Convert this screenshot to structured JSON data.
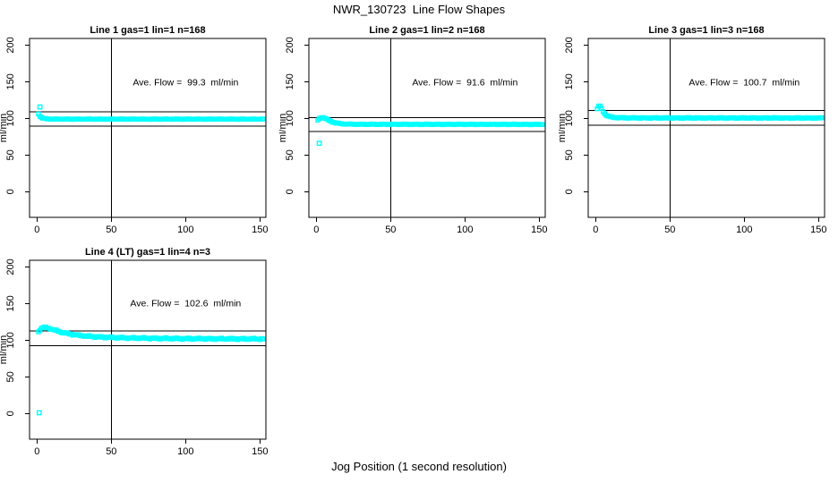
{
  "figure": {
    "title": "NWR_130723  Line Flow Shapes",
    "xlabel": "Jog Position (1 second resolution)",
    "colors": {
      "background": "#ffffff",
      "foreground": "#000000",
      "marker": "#00ffff"
    }
  },
  "chart_data": [
    {
      "type": "scatter",
      "title": "Line 1 gas=1 lin=1 n=168",
      "ylabel": "ml/min",
      "annotation": "Ave. Flow =  99.3  ml/min",
      "ave_flow_ml_min": 99.3,
      "n": 168,
      "grid_pos": [
        0,
        0
      ],
      "xlim": [
        -5,
        154
      ],
      "ylim": [
        -35,
        209
      ],
      "xticks": [
        0,
        50,
        100,
        150
      ],
      "yticks": [
        0,
        50,
        100,
        150,
        200
      ],
      "vline_x": 50,
      "hlines": [
        109.2,
        89.4
      ],
      "annotation_pos": [
        100,
        150
      ],
      "noise": 0.4,
      "curve": [
        [
          1,
          106
        ],
        [
          2,
          103
        ],
        [
          3,
          101.3
        ],
        [
          4,
          100.2
        ],
        [
          5,
          99.7
        ],
        [
          7,
          99.3
        ],
        [
          10,
          99.1
        ],
        [
          15,
          99
        ],
        [
          152,
          99
        ]
      ],
      "outliers": [
        [
          2,
          115.5
        ]
      ]
    },
    {
      "type": "scatter",
      "title": "Line 2 gas=1 lin=2 n=168",
      "ylabel": "ml/min",
      "annotation": "Ave. Flow =  91.6  ml/min",
      "ave_flow_ml_min": 91.6,
      "n": 168,
      "grid_pos": [
        0,
        1
      ],
      "xlim": [
        -5,
        154
      ],
      "ylim": [
        -35,
        209
      ],
      "xticks": [
        0,
        50,
        100,
        150
      ],
      "yticks": [
        0,
        50,
        100,
        150,
        200
      ],
      "vline_x": 50,
      "hlines": [
        100.8,
        82.4
      ],
      "annotation_pos": [
        100,
        150
      ],
      "noise": 0.5,
      "curve": [
        [
          1,
          97.5
        ],
        [
          2,
          99.5
        ],
        [
          3,
          100.8
        ],
        [
          4,
          101.3
        ],
        [
          5,
          101
        ],
        [
          6,
          100
        ],
        [
          8,
          97.8
        ],
        [
          10,
          95.8
        ],
        [
          13,
          93.8
        ],
        [
          17,
          92.6
        ],
        [
          22,
          92.1
        ],
        [
          30,
          91.9
        ],
        [
          152,
          91.8
        ]
      ],
      "outliers": [
        [
          2,
          66
        ]
      ]
    },
    {
      "type": "scatter",
      "title": "Line 3 gas=1 lin=3 n=168",
      "ylabel": "ml/min",
      "annotation": "Ave. Flow =  100.7  ml/min",
      "ave_flow_ml_min": 100.7,
      "n": 168,
      "grid_pos": [
        0,
        2
      ],
      "xlim": [
        -5,
        154
      ],
      "ylim": [
        -35,
        209
      ],
      "xticks": [
        0,
        50,
        100,
        150
      ],
      "yticks": [
        0,
        50,
        100,
        150,
        200
      ],
      "vline_x": 50,
      "hlines": [
        110.8,
        90.6
      ],
      "annotation_pos": [
        100,
        150
      ],
      "noise": 0.7,
      "curve": [
        [
          1,
          113
        ],
        [
          2,
          116.5
        ],
        [
          3,
          116.8
        ],
        [
          4,
          113
        ],
        [
          5,
          109.5
        ],
        [
          6,
          106.5
        ],
        [
          7,
          104.5
        ],
        [
          9,
          102.5
        ],
        [
          12,
          101.3
        ],
        [
          16,
          100.9
        ],
        [
          25,
          100.6
        ],
        [
          152,
          100.5
        ]
      ],
      "outliers": []
    },
    {
      "type": "scatter",
      "title": "Line 4 (LT) gas=1 lin=4 n=3",
      "ylabel": "ml/min",
      "annotation": "Ave. Flow =  102.6  ml/min",
      "ave_flow_ml_min": 102.6,
      "n": 3,
      "grid_pos": [
        1,
        0
      ],
      "xlim": [
        -5,
        154
      ],
      "ylim": [
        -35,
        209
      ],
      "xticks": [
        0,
        50,
        100,
        150
      ],
      "yticks": [
        0,
        50,
        100,
        150,
        200
      ],
      "vline_x": 50,
      "hlines": [
        112.9,
        92.3
      ],
      "annotation_pos": [
        100,
        151
      ],
      "noise": 1.1,
      "curve": [
        [
          1,
          111.5
        ],
        [
          2,
          114.5
        ],
        [
          3,
          116.3
        ],
        [
          4,
          117.2
        ],
        [
          5,
          117.4
        ],
        [
          6,
          117.2
        ],
        [
          8,
          116.3
        ],
        [
          10,
          115
        ],
        [
          12,
          113.6
        ],
        [
          15,
          111.8
        ],
        [
          18,
          110.2
        ],
        [
          22,
          108.5
        ],
        [
          26,
          107.2
        ],
        [
          30,
          106.2
        ],
        [
          35,
          105.3
        ],
        [
          40,
          104.6
        ],
        [
          45,
          104.1
        ],
        [
          50,
          103.7
        ],
        [
          60,
          103.2
        ],
        [
          70,
          102.8
        ],
        [
          85,
          102.4
        ],
        [
          100,
          102.1
        ],
        [
          120,
          101.9
        ],
        [
          152,
          101.7
        ]
      ],
      "outliers": [
        [
          1.5,
          1
        ]
      ]
    }
  ]
}
